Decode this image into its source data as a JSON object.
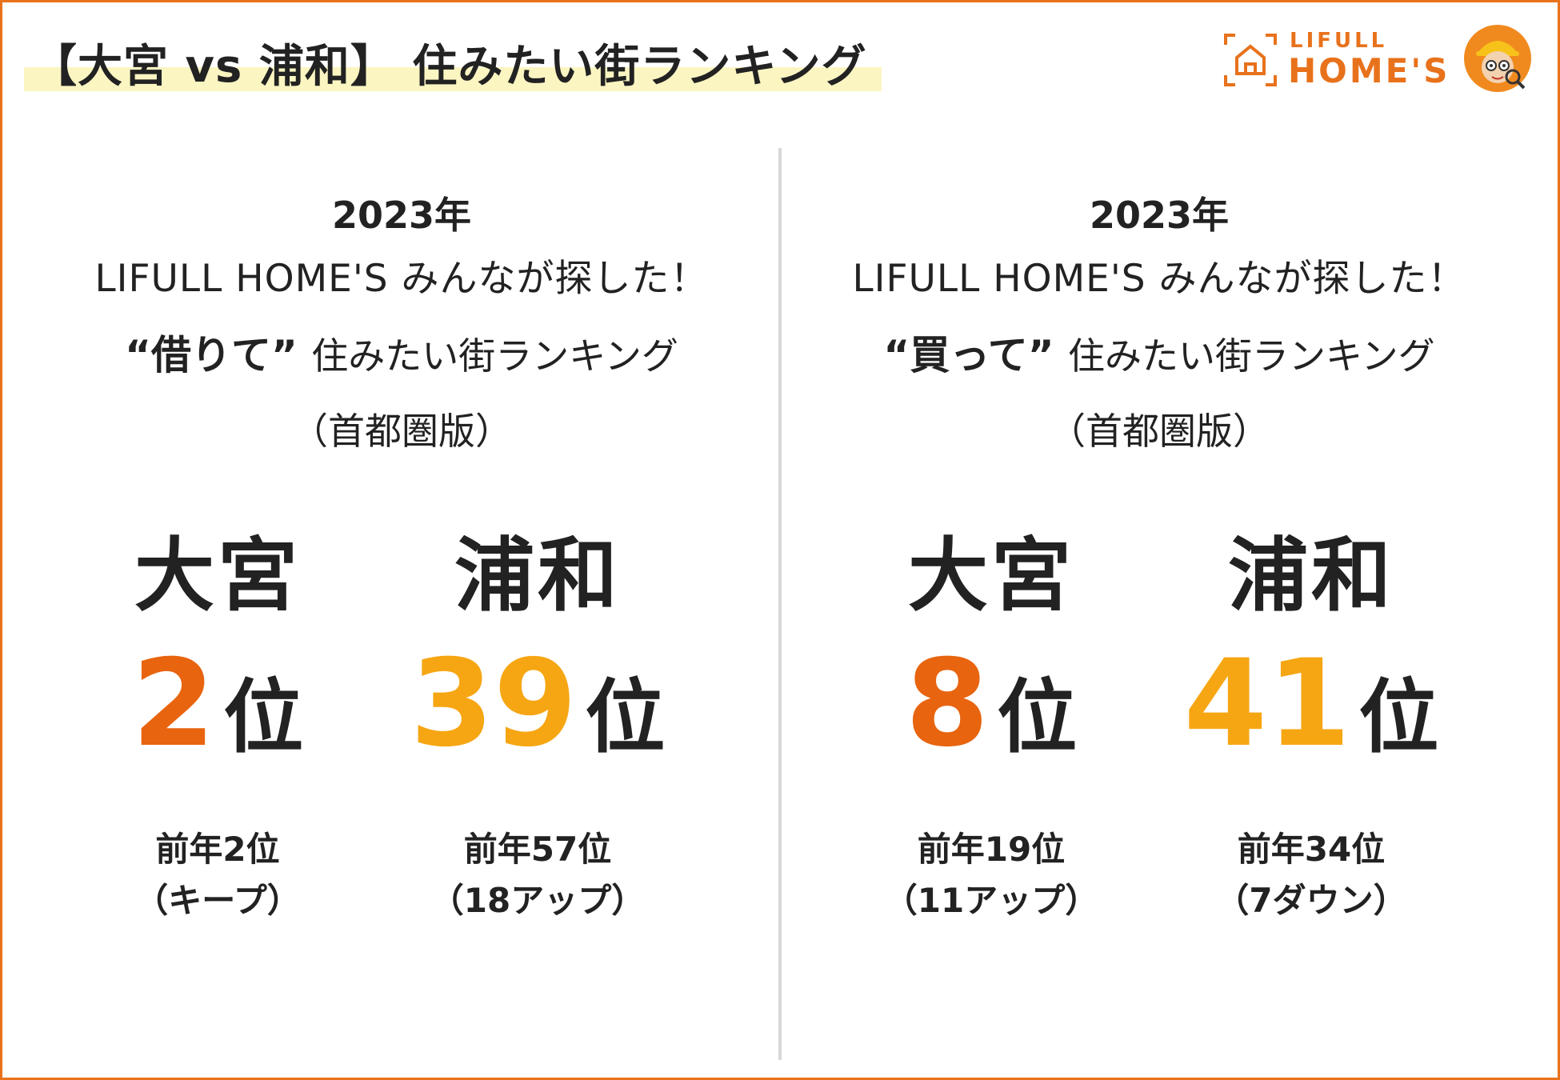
{
  "header": {
    "title": "【大宮 vs 浦和】 住みたい街ランキング"
  },
  "logo": {
    "line1": "LIFULL",
    "line2": "HOME'S",
    "icon": "house-icon",
    "mascot": "mascot-icon",
    "brand_color": "#e8721c"
  },
  "panels": [
    {
      "year": "2023年",
      "brand": "LIFULL HOME'S みんなが探した！",
      "kind_quote": "“借りて”",
      "kind_rest": "住みたい街ランキング",
      "edition": "（首都圏版）",
      "cities": [
        {
          "name": "大宮",
          "rank": "2",
          "unit": "位",
          "prev": "前年2位",
          "change": "（キープ）",
          "color": "#e8640f"
        },
        {
          "name": "浦和",
          "rank": "39",
          "unit": "位",
          "prev": "前年57位",
          "change": "（18アップ）",
          "color": "#f6a613"
        }
      ]
    },
    {
      "year": "2023年",
      "brand": "LIFULL HOME'S みんなが探した！",
      "kind_quote": "“買って”",
      "kind_rest": "住みたい街ランキング",
      "edition": "（首都圏版）",
      "cities": [
        {
          "name": "大宮",
          "rank": "8",
          "unit": "位",
          "prev": "前年19位",
          "change": "（11アップ）",
          "color": "#e8640f"
        },
        {
          "name": "浦和",
          "rank": "41",
          "unit": "位",
          "prev": "前年34位",
          "change": "（7ダウン）",
          "color": "#f6a613"
        }
      ]
    }
  ]
}
